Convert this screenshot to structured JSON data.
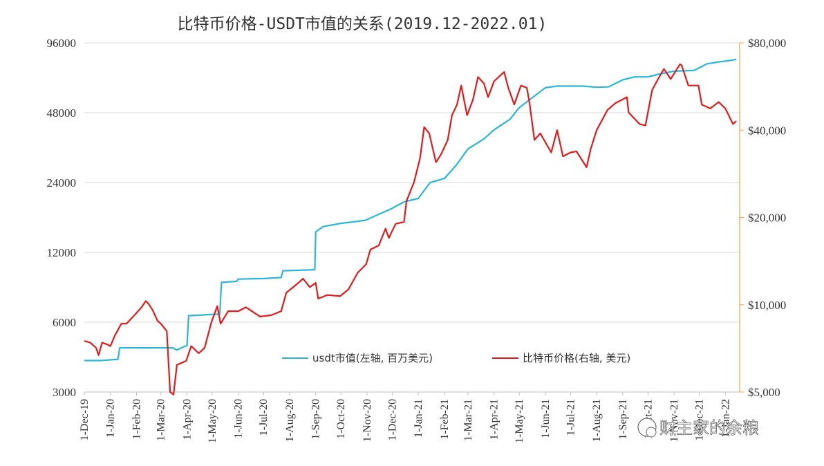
{
  "chart_data": {
    "type": "line",
    "title": "比特币价格-USDT市值的关系(2019.12-2022.01)",
    "x": [
      "1-Dec-19",
      "1-Jan-20",
      "1-Feb-20",
      "1-Mar-20",
      "1-Apr-20",
      "1-May-20",
      "1-Jun-20",
      "1-Jul-20",
      "1-Aug-20",
      "1-Sep-20",
      "1-Oct-20",
      "1-Nov-20",
      "1-Dec-20",
      "1-Jan-21",
      "1-Feb-21",
      "1-Mar-21",
      "1-Apr-21",
      "1-May-21",
      "1-Jun-21",
      "1-Jul-21",
      "1-Aug-21",
      "1-Sep-21",
      "1-Oct-21",
      "1-Nov-21",
      "1-Dec-21",
      "1-Jan-22"
    ],
    "left_axis": {
      "scale": "log",
      "ylim": [
        3000,
        96000
      ],
      "ticks": [
        3000,
        6000,
        12000,
        24000,
        48000,
        96000
      ],
      "tick_labels": [
        "3000",
        "6000",
        "12000",
        "24000",
        "48000",
        "96000"
      ]
    },
    "right_axis": {
      "scale": "log",
      "ylim": [
        5000,
        80000
      ],
      "ticks": [
        5000,
        10000,
        20000,
        40000,
        80000
      ],
      "tick_labels": [
        "$5,000",
        "$10,000",
        "$20,000",
        "$40,000",
        "$80,000"
      ],
      "color": "#f5a04a"
    },
    "grid": true,
    "legend_position": "bottom-center",
    "series": [
      {
        "name": "usdt市值(左轴, 百万美元)",
        "axis": "left",
        "color": "#2ab6d9",
        "points": [
          [
            "2019-12-01",
            4100
          ],
          [
            "2019-12-20",
            4100
          ],
          [
            "2020-01-10",
            4150
          ],
          [
            "2020-01-12",
            4650
          ],
          [
            "2020-02-15",
            4650
          ],
          [
            "2020-03-15",
            4650
          ],
          [
            "2020-03-20",
            4550
          ],
          [
            "2020-03-28",
            4700
          ],
          [
            "2020-04-01",
            4750
          ],
          [
            "2020-04-03",
            6400
          ],
          [
            "2020-04-20",
            6450
          ],
          [
            "2020-05-10",
            6500
          ],
          [
            "2020-05-12",
            8900
          ],
          [
            "2020-05-30",
            9000
          ],
          [
            "2020-06-01",
            9200
          ],
          [
            "2020-07-01",
            9250
          ],
          [
            "2020-07-22",
            9350
          ],
          [
            "2020-07-24",
            10000
          ],
          [
            "2020-08-31",
            10100
          ],
          [
            "2020-09-01",
            14700
          ],
          [
            "2020-09-10",
            15500
          ],
          [
            "2020-10-01",
            16000
          ],
          [
            "2020-10-30",
            16500
          ],
          [
            "2020-11-30",
            18500
          ],
          [
            "2020-12-15",
            19800
          ],
          [
            "2021-01-01",
            20500
          ],
          [
            "2021-01-15",
            24000
          ],
          [
            "2021-02-01",
            25000
          ],
          [
            "2021-02-15",
            28500
          ],
          [
            "2021-03-01",
            33500
          ],
          [
            "2021-03-20",
            37000
          ],
          [
            "2021-04-01",
            40500
          ],
          [
            "2021-04-20",
            45000
          ],
          [
            "2021-05-01",
            50500
          ],
          [
            "2021-05-20",
            57000
          ],
          [
            "2021-06-01",
            61500
          ],
          [
            "2021-06-15",
            62500
          ],
          [
            "2021-07-15",
            62500
          ],
          [
            "2021-08-01",
            61800
          ],
          [
            "2021-08-15",
            62000
          ],
          [
            "2021-09-01",
            66500
          ],
          [
            "2021-09-15",
            68500
          ],
          [
            "2021-10-01",
            68500
          ],
          [
            "2021-10-15",
            70500
          ],
          [
            "2021-11-01",
            72500
          ],
          [
            "2021-11-25",
            73000
          ],
          [
            "2021-12-10",
            78000
          ],
          [
            "2021-12-25",
            79500
          ],
          [
            "2022-01-10",
            81000
          ],
          [
            "2022-01-14",
            81500
          ]
        ]
      },
      {
        "name": "比特币价格(右轴, 美元)",
        "axis": "right",
        "color": "#e31a1c",
        "points": [
          [
            "2019-12-01",
            7500
          ],
          [
            "2019-12-08",
            7400
          ],
          [
            "2019-12-15",
            7100
          ],
          [
            "2019-12-18",
            6700
          ],
          [
            "2019-12-22",
            7400
          ],
          [
            "2019-12-28",
            7300
          ],
          [
            "2020-01-01",
            7200
          ],
          [
            "2020-01-06",
            7800
          ],
          [
            "2020-01-14",
            8600
          ],
          [
            "2020-01-20",
            8600
          ],
          [
            "2020-01-31",
            9300
          ],
          [
            "2020-02-07",
            9800
          ],
          [
            "2020-02-12",
            10300
          ],
          [
            "2020-02-15",
            10100
          ],
          [
            "2020-02-20",
            9600
          ],
          [
            "2020-02-26",
            8800
          ],
          [
            "2020-03-01",
            8600
          ],
          [
            "2020-03-08",
            8100
          ],
          [
            "2020-03-12",
            5000
          ],
          [
            "2020-03-16",
            4900
          ],
          [
            "2020-03-20",
            6200
          ],
          [
            "2020-03-31",
            6400
          ],
          [
            "2020-04-06",
            7200
          ],
          [
            "2020-04-15",
            6800
          ],
          [
            "2020-04-22",
            7100
          ],
          [
            "2020-04-30",
            8700
          ],
          [
            "2020-05-07",
            9900
          ],
          [
            "2020-05-11",
            8600
          ],
          [
            "2020-05-20",
            9500
          ],
          [
            "2020-06-01",
            9500
          ],
          [
            "2020-06-10",
            9800
          ],
          [
            "2020-06-27",
            9100
          ],
          [
            "2020-07-10",
            9200
          ],
          [
            "2020-07-22",
            9500
          ],
          [
            "2020-07-28",
            11000
          ],
          [
            "2020-08-10",
            11800
          ],
          [
            "2020-08-17",
            12300
          ],
          [
            "2020-08-25",
            11500
          ],
          [
            "2020-09-01",
            11900
          ],
          [
            "2020-09-04",
            10500
          ],
          [
            "2020-09-15",
            10800
          ],
          [
            "2020-09-30",
            10700
          ],
          [
            "2020-10-10",
            11300
          ],
          [
            "2020-10-21",
            12900
          ],
          [
            "2020-10-31",
            13800
          ],
          [
            "2020-11-05",
            15500
          ],
          [
            "2020-11-15",
            16000
          ],
          [
            "2020-11-23",
            18300
          ],
          [
            "2020-11-27",
            17000
          ],
          [
            "2020-12-05",
            19000
          ],
          [
            "2020-12-15",
            19300
          ],
          [
            "2020-12-18",
            22800
          ],
          [
            "2020-12-27",
            26500
          ],
          [
            "2021-01-03",
            32000
          ],
          [
            "2021-01-08",
            41000
          ],
          [
            "2021-01-14",
            39000
          ],
          [
            "2021-01-22",
            31000
          ],
          [
            "2021-01-28",
            33000
          ],
          [
            "2021-02-05",
            37000
          ],
          [
            "2021-02-10",
            45000
          ],
          [
            "2021-02-16",
            49000
          ],
          [
            "2021-02-21",
            57000
          ],
          [
            "2021-02-28",
            45000
          ],
          [
            "2021-03-07",
            51000
          ],
          [
            "2021-03-13",
            61000
          ],
          [
            "2021-03-20",
            58000
          ],
          [
            "2021-03-25",
            52000
          ],
          [
            "2021-04-01",
            59000
          ],
          [
            "2021-04-13",
            63500
          ],
          [
            "2021-04-18",
            56000
          ],
          [
            "2021-04-25",
            49000
          ],
          [
            "2021-05-03",
            57000
          ],
          [
            "2021-05-10",
            56000
          ],
          [
            "2021-05-13",
            50000
          ],
          [
            "2021-05-19",
            37000
          ],
          [
            "2021-05-26",
            39000
          ],
          [
            "2021-06-08",
            33500
          ],
          [
            "2021-06-15",
            40000
          ],
          [
            "2021-06-22",
            32500
          ],
          [
            "2021-07-01",
            33500
          ],
          [
            "2021-07-08",
            33800
          ],
          [
            "2021-07-20",
            29800
          ],
          [
            "2021-07-25",
            34500
          ],
          [
            "2021-08-01",
            40000
          ],
          [
            "2021-08-14",
            47000
          ],
          [
            "2021-08-23",
            49500
          ],
          [
            "2021-09-06",
            52000
          ],
          [
            "2021-09-08",
            46000
          ],
          [
            "2021-09-21",
            42000
          ],
          [
            "2021-09-28",
            41500
          ],
          [
            "2021-10-06",
            55000
          ],
          [
            "2021-10-15",
            61500
          ],
          [
            "2021-10-20",
            65000
          ],
          [
            "2021-10-28",
            60000
          ],
          [
            "2021-11-08",
            67500
          ],
          [
            "2021-11-10",
            67000
          ],
          [
            "2021-11-18",
            57000
          ],
          [
            "2021-11-30",
            57000
          ],
          [
            "2021-12-04",
            49000
          ],
          [
            "2021-12-14",
            47500
          ],
          [
            "2021-12-24",
            50000
          ],
          [
            "2022-01-01",
            47500
          ],
          [
            "2022-01-10",
            42000
          ],
          [
            "2022-01-14",
            43000
          ]
        ]
      }
    ]
  },
  "legend": {
    "usdt": "usdt市值(左轴, 百万美元)",
    "btc": "比特币价格(右轴, 美元)"
  },
  "watermark": "财主家的余粮"
}
